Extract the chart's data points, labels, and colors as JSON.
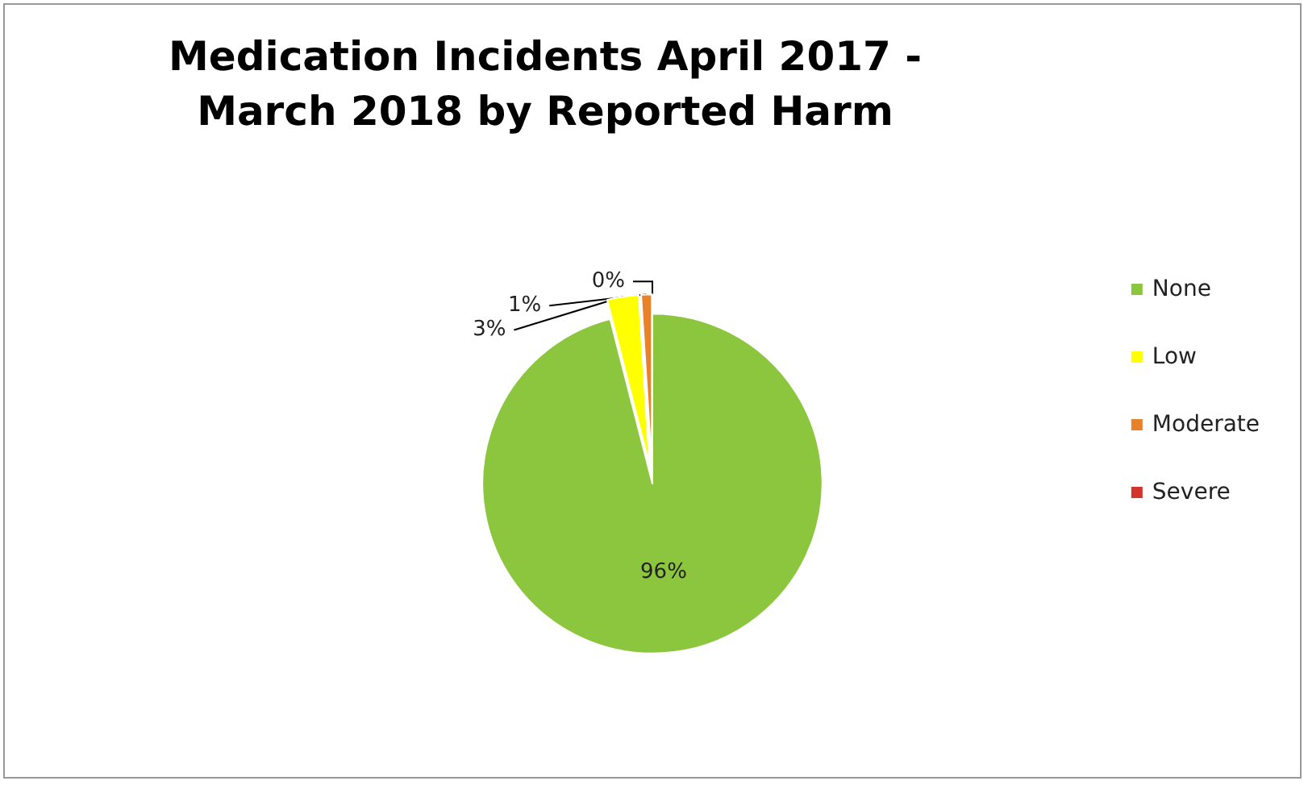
{
  "chart_data": {
    "type": "pie",
    "title": "Medication Incidents April 2017 -\nMarch 2018 by Reported Harm",
    "categories": [
      "None",
      "Low",
      "Moderate",
      "Severe"
    ],
    "values": [
      96,
      3,
      1,
      0
    ],
    "value_labels": [
      "96%",
      "3%",
      "1%",
      "0%"
    ],
    "colors": [
      "#8cc63e",
      "#ffff00",
      "#e8822a",
      "#d0342c"
    ],
    "legend": "right"
  }
}
